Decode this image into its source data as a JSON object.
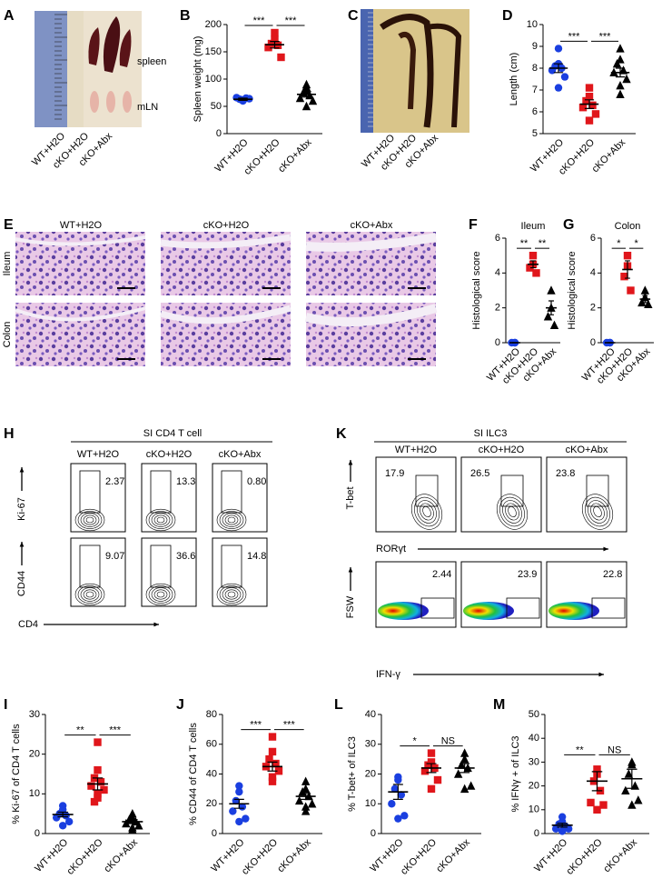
{
  "panel_letters": [
    "A",
    "B",
    "C",
    "D",
    "E",
    "F",
    "G",
    "H",
    "I",
    "J",
    "K",
    "L",
    "M"
  ],
  "photo_a": {
    "organs": [
      "spleen",
      "mLN"
    ],
    "groups": [
      "WT+H2O",
      "cKO+H2O",
      "cKO+Abx"
    ]
  },
  "photo_c": {
    "groups": [
      "WT+H2O",
      "cKO+H2O",
      "cKO+Abx"
    ]
  },
  "histology": {
    "columns": [
      "WT+H2O",
      "cKO+H2O",
      "cKO+Abx"
    ],
    "rows": [
      "Ileum",
      "Colon"
    ]
  },
  "flow_h": {
    "title": "SI CD4 T cell",
    "columns": [
      "WT+H2O",
      "cKO+H2O",
      "cKO+Abx"
    ],
    "y_labels": [
      "Ki-67",
      "CD44"
    ],
    "x_label": "CD4",
    "gates": [
      [
        "2.37",
        "13.3",
        "0.80"
      ],
      [
        "9.07",
        "36.6",
        "14.8"
      ]
    ]
  },
  "flow_k": {
    "title": "SI ILC3",
    "columns": [
      "WT+H2O",
      "cKO+H2O",
      "cKO+Abx"
    ],
    "top": {
      "y_label": "T-bet",
      "x_label": "RORγt",
      "gates": [
        "17.9",
        "26.5",
        "23.8"
      ]
    },
    "bottom": {
      "y_label": "FSW",
      "x_label": "IFN-γ",
      "gates": [
        "2.44",
        "23.9",
        "22.8"
      ]
    }
  },
  "chart_data": [
    {
      "type": "strip",
      "ylabel": "Spleen weight (mg)",
      "ylim": [
        0,
        200
      ],
      "yticks": [
        0,
        50,
        100,
        150,
        200
      ],
      "significance": [
        "***",
        "***"
      ],
      "series": [
        {
          "name": "WT+H2O",
          "color": "#1a3fe0",
          "marker": "circle",
          "values": [
            60,
            62,
            63,
            65,
            66,
            64,
            61
          ],
          "mean": 63,
          "sem": 2
        },
        {
          "name": "cKO+H2O",
          "color": "#e0161b",
          "marker": "square",
          "values": [
            185,
            172,
            165,
            162,
            158,
            140
          ],
          "mean": 163,
          "sem": 6
        },
        {
          "name": "cKO+Abx",
          "color": "#000000",
          "marker": "triangle",
          "values": [
            90,
            80,
            75,
            70,
            65,
            60,
            50,
            85
          ],
          "mean": 72,
          "sem": 5
        }
      ]
    },
    {
      "type": "strip",
      "ylabel": "Length (cm)",
      "ylim": [
        5,
        10
      ],
      "yticks": [
        5,
        6,
        7,
        8,
        9,
        10
      ],
      "significance": [
        "***",
        "***"
      ],
      "series": [
        {
          "name": "WT+H2O",
          "color": "#1a3fe0",
          "marker": "circle",
          "values": [
            8.9,
            8.2,
            8.1,
            8.0,
            7.9,
            7.6,
            7.1
          ],
          "mean": 8.0,
          "sem": 0.2
        },
        {
          "name": "cKO+H2O",
          "color": "#e0161b",
          "marker": "square",
          "values": [
            7.1,
            6.7,
            6.5,
            6.3,
            6.2,
            5.9,
            5.6
          ],
          "mean": 6.35,
          "sem": 0.2
        },
        {
          "name": "cKO+Abx",
          "color": "#000000",
          "marker": "triangle",
          "values": [
            8.9,
            8.4,
            8.2,
            7.9,
            7.8,
            7.5,
            7.2,
            6.8
          ],
          "mean": 7.8,
          "sem": 0.2
        }
      ]
    },
    {
      "type": "strip",
      "title": "Ileum",
      "ylabel": "Histological score",
      "ylim": [
        0,
        6
      ],
      "yticks": [
        0,
        2,
        4,
        6
      ],
      "significance": [
        "**",
        "**"
      ],
      "series": [
        {
          "name": "WT+H2O",
          "color": "#1a3fe0",
          "marker": "circle",
          "values": [
            0,
            0,
            0
          ],
          "mean": 0,
          "sem": 0
        },
        {
          "name": "cKO+H2O",
          "color": "#e0161b",
          "marker": "square",
          "values": [
            5,
            4.5,
            4.3,
            4
          ],
          "mean": 4.5,
          "sem": 0.2
        },
        {
          "name": "cKO+Abx",
          "color": "#000000",
          "marker": "triangle",
          "values": [
            3,
            2,
            1.5,
            1
          ],
          "mean": 2,
          "sem": 0.4
        }
      ]
    },
    {
      "type": "strip",
      "title": "Colon",
      "ylabel": "Histological score",
      "ylim": [
        0,
        6
      ],
      "yticks": [
        0,
        2,
        4,
        6
      ],
      "significance": [
        "*",
        "*"
      ],
      "series": [
        {
          "name": "WT+H2O",
          "color": "#1a3fe0",
          "marker": "circle",
          "values": [
            0,
            0,
            0
          ],
          "mean": 0,
          "sem": 0
        },
        {
          "name": "cKO+H2O",
          "color": "#e0161b",
          "marker": "square",
          "values": [
            5,
            4.4,
            3.8,
            3
          ],
          "mean": 4.2,
          "sem": 0.5
        },
        {
          "name": "cKO+Abx",
          "color": "#000000",
          "marker": "triangle",
          "values": [
            3,
            2.6,
            2.3,
            2.2
          ],
          "mean": 2.5,
          "sem": 0.2
        }
      ]
    },
    {
      "type": "strip",
      "ylabel": "% Ki-67 of CD4 T cells",
      "ylim": [
        0,
        30
      ],
      "yticks": [
        0,
        10,
        20,
        30
      ],
      "significance": [
        "**",
        "***"
      ],
      "series": [
        {
          "name": "WT+H2O",
          "color": "#1a3fe0",
          "marker": "circle",
          "values": [
            7,
            6,
            5,
            4.5,
            4,
            3,
            2
          ],
          "mean": 4.8,
          "sem": 0.6
        },
        {
          "name": "cKO+H2O",
          "color": "#e0161b",
          "marker": "square",
          "values": [
            23,
            16,
            14,
            13,
            12,
            11,
            10,
            9,
            8
          ],
          "mean": 12.5,
          "sem": 1.5
        },
        {
          "name": "cKO+Abx",
          "color": "#000000",
          "marker": "triangle",
          "values": [
            5,
            4,
            3.5,
            3,
            2.5,
            2,
            1.5,
            1
          ],
          "mean": 3,
          "sem": 0.5
        }
      ]
    },
    {
      "type": "strip",
      "ylabel": "% CD44 of CD4 T cells",
      "ylim": [
        0,
        80
      ],
      "yticks": [
        0,
        20,
        40,
        60,
        80
      ],
      "significance": [
        "***",
        "***"
      ],
      "series": [
        {
          "name": "WT+H2O",
          "color": "#1a3fe0",
          "marker": "circle",
          "values": [
            32,
            28,
            22,
            18,
            15,
            10,
            8
          ],
          "mean": 20,
          "sem": 3
        },
        {
          "name": "cKO+H2O",
          "color": "#e0161b",
          "marker": "square",
          "values": [
            65,
            55,
            50,
            47,
            45,
            42,
            38,
            35
          ],
          "mean": 45,
          "sem": 3
        },
        {
          "name": "cKO+Abx",
          "color": "#000000",
          "marker": "triangle",
          "values": [
            35,
            30,
            28,
            25,
            22,
            20,
            18,
            15
          ],
          "mean": 25,
          "sem": 2
        }
      ]
    },
    {
      "type": "strip",
      "ylabel": "% T-bet+ of ILC3",
      "ylim": [
        0,
        40
      ],
      "yticks": [
        0,
        10,
        20,
        30,
        40
      ],
      "significance": [
        "*",
        "NS"
      ],
      "series": [
        {
          "name": "WT+H2O",
          "color": "#1a3fe0",
          "marker": "circle",
          "values": [
            19,
            18,
            15,
            13,
            10,
            6,
            5
          ],
          "mean": 14,
          "sem": 2.5
        },
        {
          "name": "cKO+H2O",
          "color": "#e0161b",
          "marker": "square",
          "values": [
            27,
            24,
            23,
            22,
            21,
            18,
            15
          ],
          "mean": 22,
          "sem": 1.5
        },
        {
          "name": "cKO+Abx",
          "color": "#000000",
          "marker": "triangle",
          "values": [
            27,
            25,
            23,
            22,
            20,
            16,
            15
          ],
          "mean": 22,
          "sem": 1.5
        }
      ]
    },
    {
      "type": "strip",
      "ylabel": "% IFNγ + of ILC3",
      "ylim": [
        0,
        50
      ],
      "yticks": [
        0,
        10,
        20,
        30,
        40,
        50
      ],
      "significance": [
        "**",
        "NS"
      ],
      "series": [
        {
          "name": "WT+H2O",
          "color": "#1a3fe0",
          "marker": "circle",
          "values": [
            7,
            5,
            4,
            3,
            2,
            2,
            1
          ],
          "mean": 3.5,
          "sem": 0.8
        },
        {
          "name": "cKO+H2O",
          "color": "#e0161b",
          "marker": "square",
          "values": [
            27,
            25,
            22,
            18,
            13,
            12,
            10
          ],
          "mean": 22,
          "sem": 4
        },
        {
          "name": "cKO+Abx",
          "color": "#000000",
          "marker": "triangle",
          "values": [
            30,
            29,
            25,
            20,
            18,
            14,
            12
          ],
          "mean": 23,
          "sem": 4
        }
      ]
    }
  ]
}
